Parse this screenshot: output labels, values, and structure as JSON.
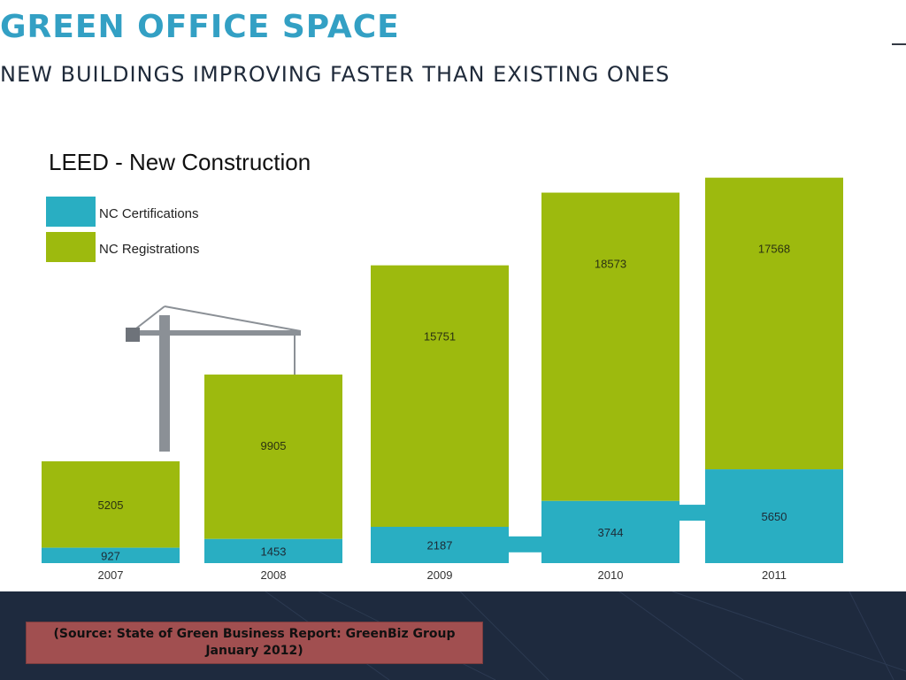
{
  "slide": {
    "title": "GREEN OFFICE SPACE",
    "subtitle": "NEW BUILDINGS IMPROVING FASTER THAN EXISTING ONES",
    "source_note": "(Source: State of Green Business Report: GreenBiz Group January 2012)"
  },
  "colors": {
    "certifications": "#29aec2",
    "registrations": "#9dba0e",
    "title": "#33a0c4",
    "background": "#1e2a3e",
    "source_box": "#a14f50"
  },
  "chart_data": {
    "type": "bar",
    "stacked": true,
    "title": "LEED - New Construction",
    "categories": [
      "2007",
      "2008",
      "2009",
      "2010",
      "2011"
    ],
    "series": [
      {
        "name": "NC Certifications",
        "values": [
          927,
          1453,
          2187,
          3744,
          5650
        ]
      },
      {
        "name": "NC Registrations",
        "values": [
          5205,
          9905,
          15751,
          18573,
          17568
        ]
      }
    ],
    "value_labels": {
      "certifications": [
        "927",
        "1453",
        "2187",
        "3744",
        "5650"
      ],
      "registrations": [
        "5205",
        "9905",
        "15751",
        "18573",
        "17568"
      ]
    },
    "legend_position": "top-left",
    "grid": false,
    "ylim": [
      0,
      24000
    ]
  }
}
